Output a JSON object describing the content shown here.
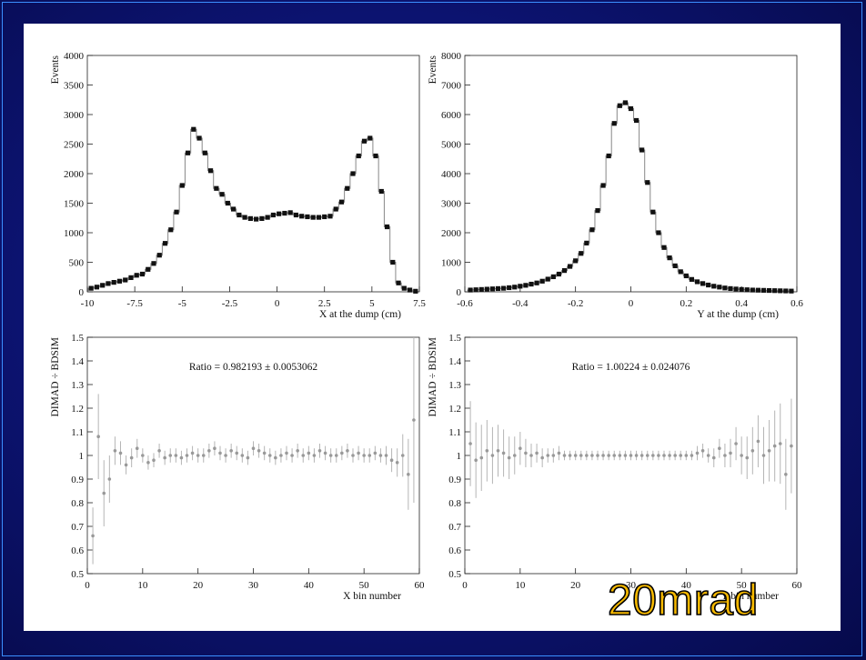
{
  "corner_label": "20mrad",
  "colors": {
    "background": "#0c1370",
    "frame": "#3b8fff",
    "label_fill": "#f5b800",
    "marker": "#111111",
    "ratio_points": "#999999"
  },
  "chart_data": [
    {
      "type": "scatter",
      "ylabel": "Events",
      "xlabel": "X at the dump (cm)",
      "xlim": [
        -10,
        7.5
      ],
      "ylim": [
        0,
        4000
      ],
      "xticks": [
        -10,
        -7.5,
        -5,
        -2.5,
        0,
        2.5,
        5,
        7.5
      ],
      "xtick_labels": [
        "-10",
        "-7.5",
        "-5",
        "-2.5",
        "0",
        "2.5",
        "5",
        "7.5"
      ],
      "yticks": [
        0,
        500,
        1000,
        1500,
        2000,
        2500,
        3000,
        3500,
        4000
      ],
      "ytick_labels": [
        "0",
        "500",
        "1000",
        "1500",
        "2000",
        "2500",
        "3000",
        "3500",
        "4000"
      ],
      "grid": false,
      "series": [
        {
          "x": [
            -9.8,
            -9.5,
            -9.2,
            -8.9,
            -8.6,
            -8.3,
            -8.0,
            -7.7,
            -7.4,
            -7.1,
            -6.8,
            -6.5,
            -6.2,
            -5.9,
            -5.6,
            -5.3,
            -5.0,
            -4.7,
            -4.4,
            -4.1,
            -3.8,
            -3.5,
            -3.2,
            -2.9,
            -2.6,
            -2.3,
            -2.0,
            -1.7,
            -1.4,
            -1.1,
            -0.8,
            -0.5,
            -0.2,
            0.1,
            0.4,
            0.7,
            1.0,
            1.3,
            1.6,
            1.9,
            2.2,
            2.5,
            2.8,
            3.1,
            3.4,
            3.7,
            4.0,
            4.3,
            4.6,
            4.9,
            5.2,
            5.5,
            5.8,
            6.1,
            6.4,
            6.7,
            7.0,
            7.3
          ],
          "y": [
            60,
            80,
            110,
            140,
            160,
            180,
            200,
            240,
            280,
            300,
            380,
            480,
            620,
            820,
            1050,
            1350,
            1800,
            2350,
            2750,
            2600,
            2350,
            2050,
            1750,
            1650,
            1500,
            1400,
            1300,
            1260,
            1240,
            1230,
            1240,
            1260,
            1300,
            1320,
            1330,
            1340,
            1300,
            1280,
            1270,
            1260,
            1260,
            1270,
            1280,
            1400,
            1520,
            1750,
            2000,
            2300,
            2550,
            2600,
            2300,
            1700,
            1100,
            500,
            150,
            60,
            30,
            10
          ]
        }
      ]
    },
    {
      "type": "scatter",
      "ylabel": "Events",
      "xlabel": "Y at the dump (cm)",
      "xlim": [
        -0.6,
        0.6
      ],
      "ylim": [
        0,
        8000
      ],
      "xticks": [
        -0.6,
        -0.4,
        -0.2,
        0,
        0.2,
        0.4,
        0.6
      ],
      "xtick_labels": [
        "-0.6",
        "-0.4",
        "-0.2",
        "0",
        "0.2",
        "0.4",
        "0.6"
      ],
      "yticks": [
        0,
        1000,
        2000,
        3000,
        4000,
        5000,
        6000,
        7000,
        8000
      ],
      "ytick_labels": [
        "0",
        "1000",
        "2000",
        "3000",
        "4000",
        "5000",
        "6000",
        "7000",
        "8000"
      ],
      "grid": false,
      "series": [
        {
          "x": [
            -0.58,
            -0.56,
            -0.54,
            -0.52,
            -0.5,
            -0.48,
            -0.46,
            -0.44,
            -0.42,
            -0.4,
            -0.38,
            -0.36,
            -0.34,
            -0.32,
            -0.3,
            -0.28,
            -0.26,
            -0.24,
            -0.22,
            -0.2,
            -0.18,
            -0.16,
            -0.14,
            -0.12,
            -0.1,
            -0.08,
            -0.06,
            -0.04,
            -0.02,
            0.0,
            0.02,
            0.04,
            0.06,
            0.08,
            0.1,
            0.12,
            0.14,
            0.16,
            0.18,
            0.2,
            0.22,
            0.24,
            0.26,
            0.28,
            0.3,
            0.32,
            0.34,
            0.36,
            0.38,
            0.4,
            0.42,
            0.44,
            0.46,
            0.48,
            0.5,
            0.52,
            0.54,
            0.56,
            0.58
          ],
          "y": [
            60,
            70,
            80,
            90,
            100,
            110,
            120,
            140,
            160,
            190,
            220,
            260,
            300,
            360,
            430,
            510,
            600,
            720,
            860,
            1050,
            1300,
            1650,
            2100,
            2750,
            3600,
            4600,
            5700,
            6300,
            6400,
            6200,
            5800,
            4800,
            3700,
            2700,
            2000,
            1500,
            1150,
            880,
            680,
            540,
            420,
            340,
            280,
            230,
            190,
            160,
            130,
            110,
            95,
            80,
            70,
            60,
            55,
            50,
            45,
            40,
            35,
            30,
            25
          ]
        }
      ]
    },
    {
      "type": "scatter",
      "title": "Ratio = 0.982193 ± 0.0053062",
      "ylabel": "DIMAD ÷ BDSIM",
      "xlabel": "X bin number",
      "xlim": [
        0,
        60
      ],
      "ylim": [
        0.5,
        1.5
      ],
      "xticks": [
        0,
        10,
        20,
        30,
        40,
        50,
        60
      ],
      "xtick_labels": [
        "0",
        "10",
        "20",
        "30",
        "40",
        "50",
        "60"
      ],
      "yticks": [
        0.5,
        0.6,
        0.7,
        0.8,
        0.9,
        1,
        1.1,
        1.2,
        1.3,
        1.4,
        1.5
      ],
      "ytick_labels": [
        "0.5",
        "0.6",
        "0.7",
        "0.8",
        "0.9",
        "1",
        "1.1",
        "1.2",
        "1.3",
        "1.4",
        "1.5"
      ],
      "series": [
        {
          "x": [
            1,
            2,
            3,
            4,
            5,
            6,
            7,
            8,
            9,
            10,
            11,
            12,
            13,
            14,
            15,
            16,
            17,
            18,
            19,
            20,
            21,
            22,
            23,
            24,
            25,
            26,
            27,
            28,
            29,
            30,
            31,
            32,
            33,
            34,
            35,
            36,
            37,
            38,
            39,
            40,
            41,
            42,
            43,
            44,
            45,
            46,
            47,
            48,
            49,
            50,
            51,
            52,
            53,
            54,
            55,
            56,
            57,
            58,
            59
          ],
          "y": [
            0.66,
            1.08,
            0.84,
            0.9,
            1.02,
            1.01,
            0.96,
            0.99,
            1.03,
            1.0,
            0.97,
            0.98,
            1.02,
            0.99,
            1.0,
            1.0,
            0.99,
            1.0,
            1.01,
            1.0,
            1.0,
            1.02,
            1.03,
            1.01,
            1.0,
            1.02,
            1.01,
            1.0,
            0.99,
            1.03,
            1.02,
            1.01,
            1.0,
            0.99,
            1.0,
            1.01,
            1.0,
            1.02,
            1.0,
            1.01,
            1.0,
            1.02,
            1.01,
            1.0,
            1.0,
            1.01,
            1.02,
            1.0,
            1.01,
            1.0,
            1.0,
            1.01,
            1.0,
            1.0,
            0.98,
            0.97,
            1.0,
            0.92,
            1.15
          ],
          "err": [
            0.12,
            0.18,
            0.14,
            0.1,
            0.06,
            0.05,
            0.04,
            0.04,
            0.04,
            0.03,
            0.03,
            0.03,
            0.03,
            0.03,
            0.03,
            0.03,
            0.03,
            0.03,
            0.03,
            0.03,
            0.03,
            0.03,
            0.03,
            0.03,
            0.03,
            0.03,
            0.03,
            0.03,
            0.03,
            0.03,
            0.03,
            0.03,
            0.03,
            0.03,
            0.03,
            0.03,
            0.03,
            0.03,
            0.03,
            0.03,
            0.03,
            0.03,
            0.03,
            0.03,
            0.03,
            0.03,
            0.03,
            0.03,
            0.03,
            0.03,
            0.03,
            0.03,
            0.03,
            0.04,
            0.05,
            0.06,
            0.09,
            0.15,
            0.35
          ]
        }
      ]
    },
    {
      "type": "scatter",
      "title": "Ratio = 1.00224 ± 0.024076",
      "ylabel": "DIMAD ÷ BDSIM",
      "xlabel": "Y bin number",
      "xlim": [
        0,
        60
      ],
      "ylim": [
        0.5,
        1.5
      ],
      "xticks": [
        0,
        10,
        20,
        30,
        40,
        50,
        60
      ],
      "xtick_labels": [
        "0",
        "10",
        "20",
        "30",
        "40",
        "50",
        "60"
      ],
      "yticks": [
        0.5,
        0.6,
        0.7,
        0.8,
        0.9,
        1,
        1.1,
        1.2,
        1.3,
        1.4,
        1.5
      ],
      "ytick_labels": [
        "0.5",
        "0.6",
        "0.7",
        "0.8",
        "0.9",
        "1",
        "1.1",
        "1.2",
        "1.3",
        "1.4",
        "1.5"
      ],
      "series": [
        {
          "x": [
            1,
            2,
            3,
            4,
            5,
            6,
            7,
            8,
            9,
            10,
            11,
            12,
            13,
            14,
            15,
            16,
            17,
            18,
            19,
            20,
            21,
            22,
            23,
            24,
            25,
            26,
            27,
            28,
            29,
            30,
            31,
            32,
            33,
            34,
            35,
            36,
            37,
            38,
            39,
            40,
            41,
            42,
            43,
            44,
            45,
            46,
            47,
            48,
            49,
            50,
            51,
            52,
            53,
            54,
            55,
            56,
            57,
            58,
            59
          ],
          "y": [
            1.05,
            0.98,
            0.99,
            1.02,
            1.0,
            1.02,
            1.01,
            0.99,
            1.0,
            1.03,
            1.01,
            1.0,
            1.01,
            0.99,
            1.0,
            1.0,
            1.01,
            1.0,
            1.0,
            1.0,
            1.0,
            1.0,
            1.0,
            1.0,
            1.0,
            1.0,
            1.0,
            1.0,
            1.0,
            1.0,
            1.0,
            1.0,
            1.0,
            1.0,
            1.0,
            1.0,
            1.0,
            1.0,
            1.0,
            1.0,
            1.0,
            1.01,
            1.02,
            1.0,
            0.99,
            1.03,
            1.0,
            1.01,
            1.05,
            1.0,
            0.99,
            1.02,
            1.06,
            1.0,
            1.02,
            1.04,
            1.05,
            0.92,
            1.04
          ],
          "err": [
            0.18,
            0.16,
            0.14,
            0.13,
            0.12,
            0.11,
            0.1,
            0.09,
            0.08,
            0.07,
            0.06,
            0.05,
            0.04,
            0.04,
            0.03,
            0.03,
            0.03,
            0.02,
            0.02,
            0.02,
            0.02,
            0.02,
            0.02,
            0.02,
            0.02,
            0.02,
            0.02,
            0.02,
            0.02,
            0.02,
            0.02,
            0.02,
            0.02,
            0.02,
            0.02,
            0.02,
            0.02,
            0.02,
            0.02,
            0.02,
            0.02,
            0.03,
            0.03,
            0.03,
            0.04,
            0.04,
            0.05,
            0.06,
            0.07,
            0.08,
            0.09,
            0.1,
            0.11,
            0.12,
            0.13,
            0.15,
            0.17,
            0.15,
            0.2
          ]
        }
      ]
    }
  ]
}
